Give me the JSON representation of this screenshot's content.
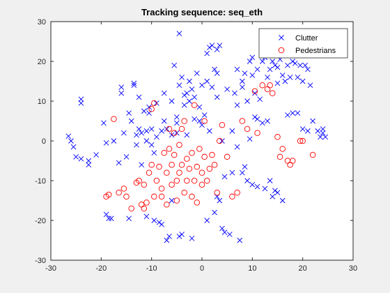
{
  "chart_data": {
    "type": "scatter",
    "title": "Tracking sequence: seq_eth",
    "xlabel": "",
    "ylabel": "",
    "xlim": [
      -30,
      30
    ],
    "ylim": [
      -30,
      30
    ],
    "xticks": [
      -30,
      -20,
      -10,
      0,
      10,
      20,
      30
    ],
    "yticks": [
      -30,
      -20,
      -10,
      0,
      10,
      20,
      30
    ],
    "grid": false,
    "legend_position": "top-right",
    "series": [
      {
        "name": "Clutter",
        "marker": "x",
        "color": "#0000ff",
        "points": [
          [
            -26.5,
            1.2
          ],
          [
            -26,
            0
          ],
          [
            -25.5,
            -1.5
          ],
          [
            -25,
            -4
          ],
          [
            -24,
            -4.5
          ],
          [
            -24,
            9.5
          ],
          [
            -24,
            10.5
          ],
          [
            -22.5,
            -5
          ],
          [
            -22.5,
            -6
          ],
          [
            -21,
            -3.5
          ],
          [
            -19.5,
            4.5
          ],
          [
            -19,
            -18.5
          ],
          [
            -19,
            -0.5
          ],
          [
            -18.5,
            -19.5
          ],
          [
            -18,
            -19.5
          ],
          [
            -17.5,
            0
          ],
          [
            -16.5,
            -5.5
          ],
          [
            -16,
            12
          ],
          [
            -16,
            13.5
          ],
          [
            -15.5,
            2
          ],
          [
            -15,
            -4
          ],
          [
            -14.5,
            -19.5
          ],
          [
            -14.5,
            7
          ],
          [
            -14,
            5
          ],
          [
            -13.5,
            14
          ],
          [
            -13.5,
            14.5
          ],
          [
            -13,
            -1
          ],
          [
            -13,
            1.5
          ],
          [
            -12.5,
            11
          ],
          [
            -12.5,
            3
          ],
          [
            -12,
            -6
          ],
          [
            -12,
            2
          ],
          [
            -11.5,
            7.5
          ],
          [
            -11,
            2.5
          ],
          [
            -11,
            0
          ],
          [
            -11,
            -19
          ],
          [
            -10.5,
            8.5
          ],
          [
            -10.5,
            7
          ],
          [
            -10,
            3
          ],
          [
            -10,
            -1
          ],
          [
            -9.5,
            -3
          ],
          [
            -9.5,
            -20
          ],
          [
            -9,
            9.5
          ],
          [
            -9,
            1
          ],
          [
            -8.5,
            -20.5
          ],
          [
            -8,
            2.5
          ],
          [
            -8,
            -21
          ],
          [
            -7.5,
            12
          ],
          [
            -7.5,
            5
          ],
          [
            -7,
            -25
          ],
          [
            -7,
            3
          ],
          [
            -6.5,
            -24
          ],
          [
            -6,
            10
          ],
          [
            -6,
            1.5
          ],
          [
            -6,
            -15
          ],
          [
            -5.5,
            19
          ],
          [
            -5,
            6
          ],
          [
            -5,
            4.5
          ],
          [
            -5,
            2
          ],
          [
            -4.5,
            27
          ],
          [
            -4.5,
            14
          ],
          [
            -4.5,
            -24
          ],
          [
            -4,
            16
          ],
          [
            -4,
            -23.5
          ],
          [
            -3.5,
            11.5
          ],
          [
            -3.5,
            9
          ],
          [
            -3,
            12
          ],
          [
            -3,
            1.5
          ],
          [
            -2.5,
            15
          ],
          [
            -2.5,
            10
          ],
          [
            -2,
            13
          ],
          [
            -2,
            -24.5
          ],
          [
            -1.5,
            11
          ],
          [
            -1.5,
            5.5
          ],
          [
            -1,
            17
          ],
          [
            -0.5,
            8.5
          ],
          [
            -0.5,
            5
          ],
          [
            0,
            14
          ],
          [
            0,
            4
          ],
          [
            0.5,
            6.5
          ],
          [
            1,
            22
          ],
          [
            1,
            15
          ],
          [
            1,
            -20
          ],
          [
            1.5,
            23.5
          ],
          [
            1.5,
            2.5
          ],
          [
            2,
            24
          ],
          [
            2,
            13.5
          ],
          [
            2.5,
            18
          ],
          [
            2.5,
            -18
          ],
          [
            3,
            23
          ],
          [
            3,
            17
          ],
          [
            3,
            11
          ],
          [
            3,
            -14
          ],
          [
            3.5,
            24
          ],
          [
            3.5,
            -15
          ],
          [
            4,
            -22
          ],
          [
            4,
            0
          ],
          [
            4.5,
            -9
          ],
          [
            4.5,
            -23
          ],
          [
            5,
            13
          ],
          [
            5.5,
            -23.5
          ],
          [
            6,
            -8
          ],
          [
            6,
            2.5
          ],
          [
            6.5,
            12
          ],
          [
            7,
            18
          ],
          [
            7,
            9
          ],
          [
            7,
            -1.5
          ],
          [
            7.5,
            -25
          ],
          [
            8,
            13.5
          ],
          [
            8,
            15
          ],
          [
            8,
            -8
          ],
          [
            8.5,
            17
          ],
          [
            8.5,
            -6.5
          ],
          [
            9,
            10
          ],
          [
            9,
            -10
          ],
          [
            9.5,
            20
          ],
          [
            9.5,
            0.5
          ],
          [
            10,
            21
          ],
          [
            10,
            16.5
          ],
          [
            10,
            -11
          ],
          [
            10.5,
            12
          ],
          [
            10.5,
            6
          ],
          [
            11,
            18
          ],
          [
            11,
            5.5
          ],
          [
            11,
            -11.5
          ],
          [
            11.5,
            10.5
          ],
          [
            12,
            20
          ],
          [
            12,
            4.5
          ],
          [
            12.5,
            21
          ],
          [
            12.5,
            -12
          ],
          [
            13,
            16
          ],
          [
            13,
            5
          ],
          [
            13.5,
            18
          ],
          [
            13.5,
            -10
          ],
          [
            14,
            20
          ],
          [
            14,
            -14
          ],
          [
            14.5,
            19
          ],
          [
            14.5,
            -12.5
          ],
          [
            15,
            18.5
          ],
          [
            15,
            14.5
          ],
          [
            15,
            -13
          ],
          [
            15.5,
            20.5
          ],
          [
            16,
            21.5
          ],
          [
            16,
            16.5
          ],
          [
            16,
            -15
          ],
          [
            16.5,
            15
          ],
          [
            17,
            19
          ],
          [
            17,
            6.5
          ],
          [
            17.5,
            16
          ],
          [
            18,
            20
          ],
          [
            18,
            7
          ],
          [
            18.5,
            19.5
          ],
          [
            19,
            16
          ],
          [
            19,
            7
          ],
          [
            19.5,
            19
          ],
          [
            20,
            15
          ],
          [
            20,
            3
          ],
          [
            20.5,
            19
          ],
          [
            21,
            18
          ],
          [
            21,
            2.5
          ],
          [
            21.5,
            14
          ],
          [
            22,
            5
          ],
          [
            23,
            2.5
          ],
          [
            23.5,
            1
          ],
          [
            24,
            3
          ],
          [
            24,
            2
          ],
          [
            24.5,
            1
          ]
        ]
      },
      {
        "name": "Pedestrians",
        "marker": "o",
        "color": "#ff0000",
        "points": [
          [
            -19,
            -14
          ],
          [
            -18.5,
            -13.5
          ],
          [
            -17.5,
            5.5
          ],
          [
            -16.5,
            -13
          ],
          [
            -15.5,
            -12
          ],
          [
            -15,
            -14
          ],
          [
            -14,
            -17
          ],
          [
            -13,
            -10.5
          ],
          [
            -12.5,
            -10
          ],
          [
            -12,
            -16
          ],
          [
            -11.5,
            -17
          ],
          [
            -11.5,
            -11
          ],
          [
            -11,
            -15.5
          ],
          [
            -10.5,
            -8
          ],
          [
            -10,
            -6
          ],
          [
            -10,
            8
          ],
          [
            -9.5,
            -14
          ],
          [
            -9.5,
            9.5
          ],
          [
            -9,
            -10
          ],
          [
            -8.5,
            -6.5
          ],
          [
            -8,
            -12
          ],
          [
            -8,
            -14
          ],
          [
            -7.5,
            -3
          ],
          [
            -7,
            -8
          ],
          [
            -7,
            -16
          ],
          [
            -6.5,
            -2
          ],
          [
            -6.5,
            3
          ],
          [
            -6,
            -6
          ],
          [
            -6,
            -11
          ],
          [
            -5.5,
            -3.5
          ],
          [
            -5.5,
            2
          ],
          [
            -5,
            -10
          ],
          [
            -5,
            -15
          ],
          [
            -4.5,
            -1
          ],
          [
            -4.5,
            -8
          ],
          [
            -4,
            -6
          ],
          [
            -4,
            3
          ],
          [
            -3.5,
            -13
          ],
          [
            -3.5,
            5
          ],
          [
            -3,
            -4.5
          ],
          [
            -3,
            -10
          ],
          [
            -2.5,
            -7
          ],
          [
            -2,
            -14
          ],
          [
            -2,
            -3
          ],
          [
            -1.5,
            9
          ],
          [
            -1.5,
            -10
          ],
          [
            -1,
            -6.5
          ],
          [
            -1,
            -15.5
          ],
          [
            -0.5,
            -2
          ],
          [
            0,
            -8
          ],
          [
            0,
            -11
          ],
          [
            0.5,
            -4
          ],
          [
            0.5,
            5
          ],
          [
            1,
            -10
          ],
          [
            1.5,
            -7
          ],
          [
            2,
            -3.5
          ],
          [
            2.5,
            -6
          ],
          [
            3,
            -13
          ],
          [
            3.5,
            0
          ],
          [
            4,
            4
          ],
          [
            5,
            -4
          ],
          [
            6,
            -14
          ],
          [
            7,
            -13
          ],
          [
            8,
            5
          ],
          [
            9,
            3
          ],
          [
            10.5,
            12.5
          ],
          [
            11,
            2
          ],
          [
            12,
            14
          ],
          [
            13,
            13
          ],
          [
            13.5,
            14
          ],
          [
            14,
            12
          ],
          [
            15,
            1
          ],
          [
            15.5,
            -4
          ],
          [
            16,
            -2
          ],
          [
            17,
            -5
          ],
          [
            17.5,
            -6
          ],
          [
            18,
            -5
          ],
          [
            19.5,
            0
          ],
          [
            20,
            0
          ],
          [
            22,
            -3.5
          ]
        ]
      }
    ]
  }
}
